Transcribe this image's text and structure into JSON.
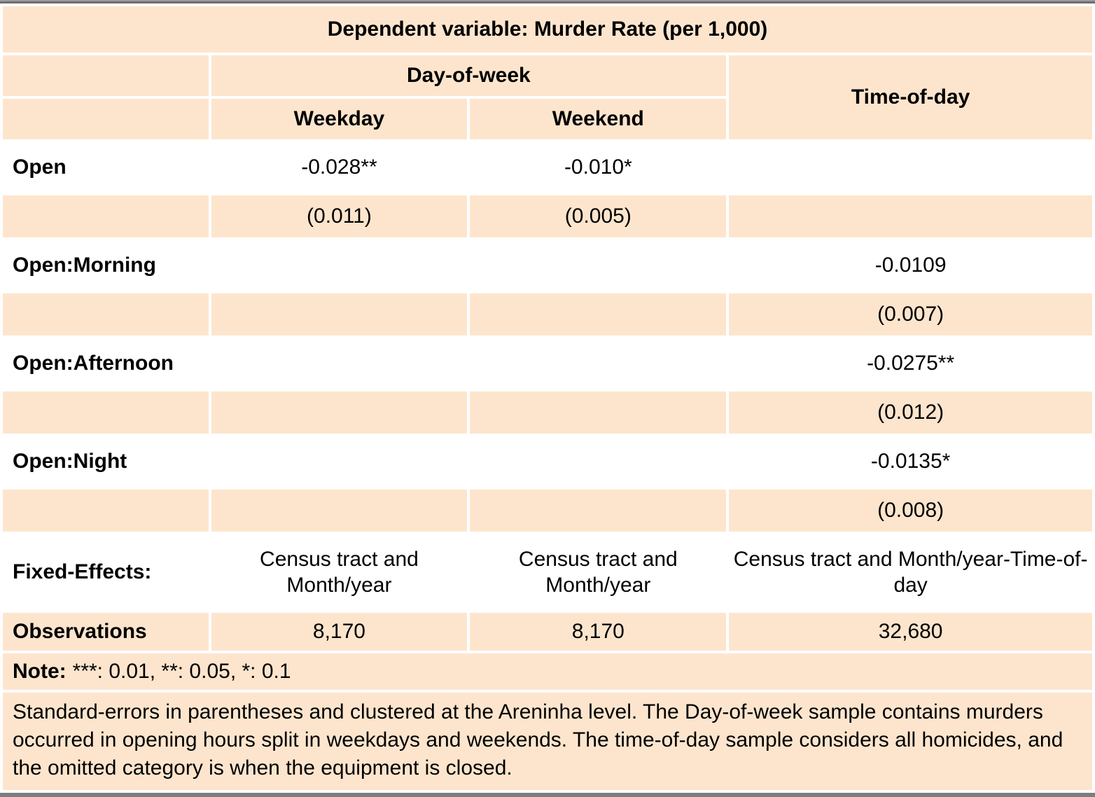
{
  "table": {
    "title": "Dependent variable: Murder Rate (per 1,000)",
    "groups": {
      "day_of_week": "Day-of-week",
      "time_of_day": "Time-of-day"
    },
    "columns": {
      "weekday": "Weekday",
      "weekend": "Weekend"
    },
    "rows": {
      "open": {
        "label": "Open",
        "weekday": "-0.028**",
        "weekend": "-0.010*",
        "time_of_day": ""
      },
      "open_se": {
        "weekday": "(0.011)",
        "weekend": "(0.005)",
        "time_of_day": ""
      },
      "open_morning": {
        "label": "Open:Morning",
        "weekday": "",
        "weekend": "",
        "time_of_day": "-0.0109"
      },
      "open_morning_se": {
        "weekday": "",
        "weekend": "",
        "time_of_day": "(0.007)"
      },
      "open_afternoon": {
        "label": "Open:Afternoon",
        "weekday": "",
        "weekend": "",
        "time_of_day": "-0.0275**"
      },
      "open_afternoon_se": {
        "weekday": "",
        "weekend": "",
        "time_of_day": "(0.012)"
      },
      "open_night": {
        "label": "Open:Night",
        "weekday": "",
        "weekend": "",
        "time_of_day": "-0.0135*"
      },
      "open_night_se": {
        "weekday": "",
        "weekend": "",
        "time_of_day": "(0.008)"
      },
      "fixed_effects": {
        "label": "Fixed-Effects:",
        "weekday": "Census tract and Month/year",
        "weekend": "Census tract and Month/year",
        "time_of_day": "Census tract and Month/year-Time-of-day"
      },
      "observations": {
        "label": "Observations",
        "weekday": "8,170",
        "weekend": "8,170",
        "time_of_day": "32,680"
      }
    },
    "notes": {
      "note_label": "Note:",
      "note_body": "***: 0.01, **: 0.05, *: 0.1",
      "caption": "Standard-errors in parentheses and clustered at the Areninha level. The Day-of-week sample contains murders occurred in opening hours split in weekdays and weekends. The time-of-day sample considers all homicides, and the omitted category is when the equipment is closed."
    }
  },
  "colors": {
    "cell_bg": "#fde5cd",
    "rule_gray": "#7d7d7d",
    "text": "#000000"
  }
}
